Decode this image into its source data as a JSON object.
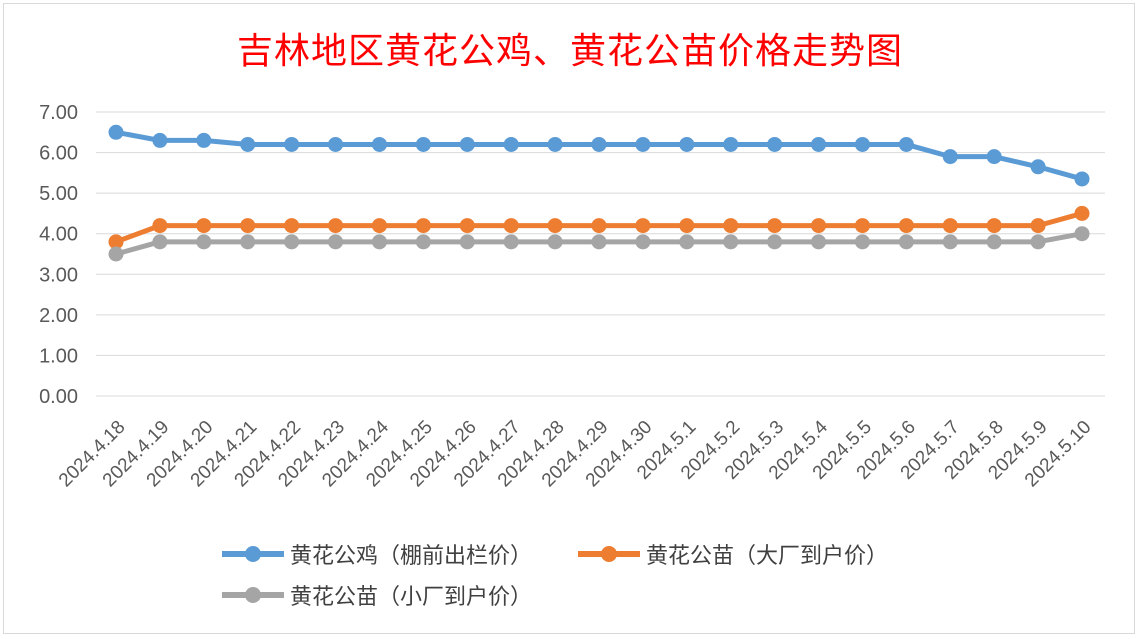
{
  "chart_data": {
    "type": "line",
    "title": "吉林地区黄花公鸡、黄花公苗价格走势图",
    "categories": [
      "2024.4.18",
      "2024.4.19",
      "2024.4.20",
      "2024.4.21",
      "2024.4.22",
      "2024.4.23",
      "2024.4.24",
      "2024.4.25",
      "2024.4.26",
      "2024.4.27",
      "2024.4.28",
      "2024.4.29",
      "2024.4.30",
      "2024.5.1",
      "2024.5.2",
      "2024.5.3",
      "2024.5.4",
      "2024.5.5",
      "2024.5.6",
      "2024.5.7",
      "2024.5.8",
      "2024.5.9",
      "2024.5.10"
    ],
    "ylim": [
      0,
      7
    ],
    "yticks": [
      "0.00",
      "1.00",
      "2.00",
      "3.00",
      "4.00",
      "5.00",
      "6.00",
      "7.00"
    ],
    "grid": true,
    "legend_position": "bottom",
    "series": [
      {
        "name": "黄花公鸡（棚前出栏价）",
        "color": "#5b9bd5",
        "values": [
          6.5,
          6.3,
          6.3,
          6.2,
          6.2,
          6.2,
          6.2,
          6.2,
          6.2,
          6.2,
          6.2,
          6.2,
          6.2,
          6.2,
          6.2,
          6.2,
          6.2,
          6.2,
          6.2,
          5.9,
          5.9,
          5.65,
          5.35
        ]
      },
      {
        "name": "黄花公苗（大厂到户价）",
        "color": "#ed7d31",
        "values": [
          3.8,
          4.2,
          4.2,
          4.2,
          4.2,
          4.2,
          4.2,
          4.2,
          4.2,
          4.2,
          4.2,
          4.2,
          4.2,
          4.2,
          4.2,
          4.2,
          4.2,
          4.2,
          4.2,
          4.2,
          4.2,
          4.2,
          4.5
        ]
      },
      {
        "name": "黄花公苗（小厂到户价）",
        "color": "#a5a5a5",
        "values": [
          3.5,
          3.8,
          3.8,
          3.8,
          3.8,
          3.8,
          3.8,
          3.8,
          3.8,
          3.8,
          3.8,
          3.8,
          3.8,
          3.8,
          3.8,
          3.8,
          3.8,
          3.8,
          3.8,
          3.8,
          3.8,
          3.8,
          4.0
        ]
      }
    ]
  }
}
